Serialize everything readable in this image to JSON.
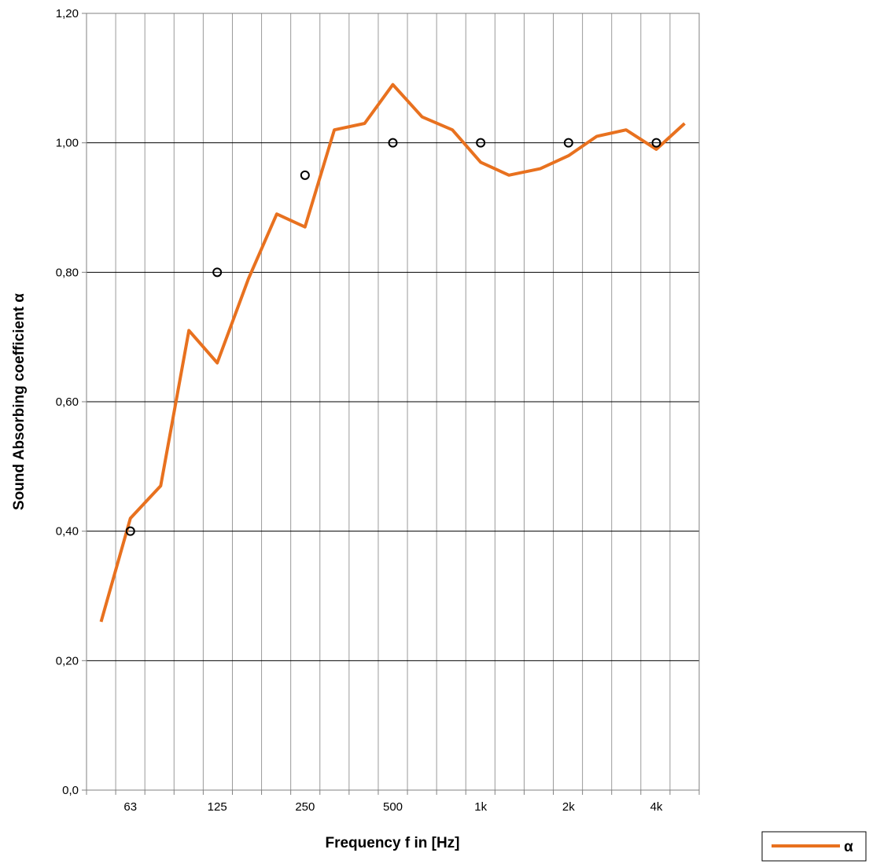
{
  "chart_data": {
    "type": "line",
    "xlabel": "Frequency f in [Hz]",
    "ylabel": "Sound Absorbing coefficient α",
    "x_scale": "log",
    "ylim": [
      0,
      1.2
    ],
    "yticks": [
      "0,0",
      "0,20",
      "0,40",
      "0,60",
      "0,80",
      "1,00",
      "1,20"
    ],
    "ytick_values": [
      0,
      0.2,
      0.4,
      0.6,
      0.8,
      1.0,
      1.2
    ],
    "xtick_labels": [
      "63",
      "125",
      "250",
      "500",
      "1k",
      "2k",
      "4k"
    ],
    "xtick_values": [
      63,
      125,
      250,
      500,
      1000,
      2000,
      4000
    ],
    "third_octave_bands": [
      50,
      63,
      80,
      100,
      125,
      160,
      200,
      250,
      315,
      400,
      500,
      630,
      800,
      1000,
      1250,
      1600,
      2000,
      2500,
      3150,
      4000,
      5000
    ],
    "grid": true,
    "legend_position": "bottom-right",
    "series": [
      {
        "name": "α",
        "color": "#e8711f",
        "style": "line",
        "x": [
          50,
          63,
          80,
          100,
          125,
          160,
          200,
          250,
          315,
          400,
          500,
          630,
          800,
          1000,
          1250,
          1600,
          2000,
          2500,
          3150,
          4000,
          5000
        ],
        "values": [
          0.26,
          0.42,
          0.47,
          0.71,
          0.66,
          0.79,
          0.89,
          0.87,
          1.02,
          1.03,
          1.09,
          1.04,
          1.02,
          0.97,
          0.95,
          0.96,
          0.98,
          1.01,
          1.02,
          0.99,
          1.03
        ]
      },
      {
        "style": "markers",
        "marker": "open-circle",
        "color": "#000000",
        "x": [
          63,
          125,
          250,
          500,
          1000,
          2000,
          4000
        ],
        "values": [
          0.4,
          0.8,
          0.95,
          1.0,
          1.0,
          1.0,
          1.0
        ]
      }
    ]
  }
}
